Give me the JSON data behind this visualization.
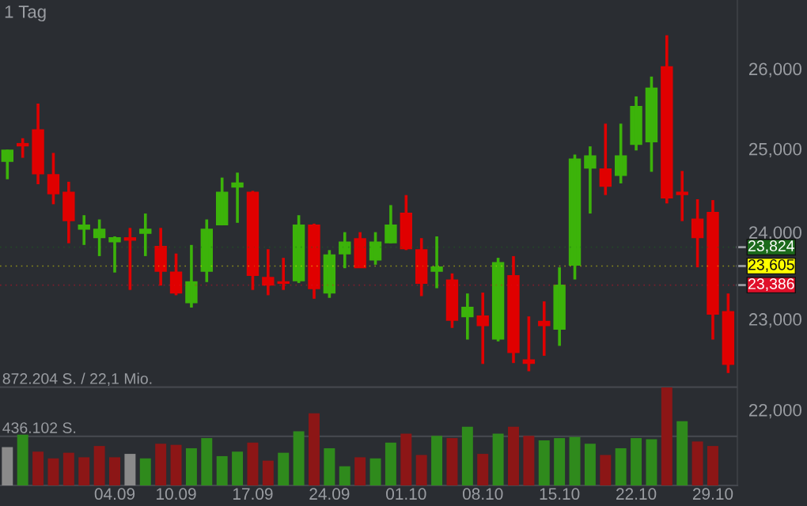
{
  "chart_data": [
    {
      "type": "candlestick",
      "subtitle": "1 Tag",
      "categories": [
        null,
        null,
        null,
        null,
        null,
        null,
        null,
        "04.09",
        null,
        null,
        null,
        "10.09",
        null,
        null,
        null,
        null,
        "17.09",
        null,
        null,
        null,
        null,
        "24.09",
        null,
        null,
        null,
        null,
        "01.10",
        null,
        null,
        null,
        null,
        "08.10",
        null,
        null,
        null,
        null,
        "15.10",
        null,
        null,
        null,
        null,
        "22.10",
        null,
        null,
        null,
        null,
        "29.10",
        null
      ],
      "ohlc": [
        [
          24850,
          24990,
          24630,
          24980
        ],
        [
          25060,
          25130,
          24890,
          25040
        ],
        [
          25230,
          25560,
          24570,
          24700
        ],
        [
          24680,
          24950,
          24330,
          24460
        ],
        [
          24470,
          24600,
          23870,
          24140
        ],
        [
          24040,
          24200,
          23850,
          24080
        ],
        [
          23940,
          24150,
          23720,
          24030
        ],
        [
          23890,
          23950,
          23530,
          23930
        ],
        [
          23930,
          24050,
          23330,
          23910
        ],
        [
          23990,
          24220,
          23720,
          24030
        ],
        [
          23830,
          24050,
          23380,
          23550
        ],
        [
          23530,
          23750,
          23270,
          23300
        ],
        [
          23190,
          23850,
          23130,
          23420
        ],
        [
          23550,
          24150,
          23420,
          24030
        ],
        [
          24090,
          24650,
          24080,
          24470
        ],
        [
          24540,
          24710,
          24110,
          24580
        ],
        [
          24470,
          24490,
          23330,
          23500
        ],
        [
          23470,
          23800,
          23270,
          23390
        ],
        [
          23420,
          23700,
          23330,
          23410
        ],
        [
          23440,
          24200,
          23410,
          24080
        ],
        [
          24080,
          24100,
          23230,
          23350
        ],
        [
          23300,
          23790,
          23240,
          23730
        ],
        [
          23750,
          24000,
          23580,
          23880
        ],
        [
          23920,
          24000,
          23590,
          23590
        ],
        [
          23680,
          24000,
          23620,
          23880
        ],
        [
          23880,
          24320,
          23870,
          24080
        ],
        [
          24220,
          24440,
          23790,
          23810
        ],
        [
          23790,
          23930,
          23260,
          23410
        ],
        [
          23550,
          23950,
          23350,
          23590
        ],
        [
          23440,
          23520,
          22900,
          22990
        ],
        [
          23030,
          23290,
          22770,
          23130
        ],
        [
          23030,
          23300,
          22500,
          22930
        ],
        [
          22780,
          23700,
          22750,
          23640
        ],
        [
          23490,
          23720,
          22510,
          22630
        ],
        [
          22540,
          23030,
          22420,
          22510
        ],
        [
          22970,
          23200,
          22590,
          22930
        ],
        [
          22890,
          23590,
          22700,
          23380
        ],
        [
          23620,
          24930,
          23450,
          24870
        ],
        [
          24770,
          25030,
          24220,
          24910
        ],
        [
          24750,
          25310,
          24440,
          24550
        ],
        [
          24680,
          25310,
          24580,
          24910
        ],
        [
          25060,
          25650,
          24980,
          25520
        ],
        [
          25090,
          25900,
          24720,
          25750
        ],
        [
          26020,
          26430,
          24340,
          24410
        ],
        [
          24470,
          24730,
          24130,
          24450
        ],
        [
          24150,
          24390,
          23590,
          23940
        ],
        [
          24230,
          24380,
          22770,
          23060
        ],
        [
          23080,
          23290,
          22400,
          22500
        ]
      ],
      "colors": [
        "#3cb30a",
        "#e00000",
        "#e00000",
        "#e00000",
        "#e00000",
        "#3cb30a",
        "#3cb30a",
        "#3cb30a",
        "#e00000",
        "#3cb30a",
        "#e00000",
        "#e00000",
        "#3cb30a",
        "#3cb30a",
        "#3cb30a",
        "#3cb30a",
        "#e00000",
        "#e00000",
        "#e00000",
        "#3cb30a",
        "#e00000",
        "#3cb30a",
        "#3cb30a",
        "#e00000",
        "#3cb30a",
        "#3cb30a",
        "#e00000",
        "#e00000",
        "#3cb30a",
        "#e00000",
        "#3cb30a",
        "#e00000",
        "#3cb30a",
        "#e00000",
        "#e00000",
        "#e00000",
        "#3cb30a",
        "#3cb30a",
        "#3cb30a",
        "#e00000",
        "#3cb30a",
        "#3cb30a",
        "#3cb30a",
        "#e00000",
        "#e00000",
        "#e00000",
        "#e00000",
        "#e00000"
      ],
      "log": "y",
      "ylim": [
        21200,
        26890
      ],
      "yticks": [
        {
          "value": 22000,
          "label": "22,000"
        },
        {
          "value": 23000,
          "label": "23,000"
        },
        {
          "value": 24000,
          "label": "24,000"
        },
        {
          "value": 25000,
          "label": "25,000"
        },
        {
          "value": 26000,
          "label": "26,000"
        }
      ],
      "ref_lines": [
        {
          "axis": "y",
          "value": 23824,
          "label": "23,824",
          "color": "#1c6b1c"
        },
        {
          "axis": "y",
          "value": 23605,
          "label": "23,605",
          "color": "#ffff00"
        },
        {
          "axis": "y",
          "value": 23386,
          "label": "23,386",
          "color": "#e0102a"
        }
      ],
      "grid": false,
      "tick_labels": "y"
    },
    {
      "type": "bar",
      "categories": [
        null,
        null,
        null,
        null,
        null,
        null,
        null,
        "04.09",
        null,
        null,
        null,
        "10.09",
        null,
        null,
        null,
        null,
        "17.09",
        null,
        null,
        null,
        null,
        "24.09",
        null,
        null,
        null,
        null,
        "01.10",
        null,
        null,
        null,
        null,
        "08.10",
        null,
        null,
        null,
        null,
        "15.10",
        null,
        null,
        null,
        null,
        "22.10",
        null,
        null,
        null,
        null,
        "29.10",
        null
      ],
      "values": [
        340,
        450,
        300,
        240,
        290,
        250,
        350,
        250,
        280,
        240,
        370,
        360,
        330,
        420,
        260,
        300,
        380,
        220,
        290,
        480,
        640,
        330,
        170,
        250,
        240,
        380,
        460,
        270,
        440,
        420,
        520,
        280,
        460,
        520,
        440,
        400,
        420,
        430,
        370,
        270,
        330,
        420,
        410,
        870,
        570,
        390,
        350,
        null
      ],
      "colors": [
        "#8a8a8a",
        "#2f8a1c",
        "#8c1616",
        "#8c1616",
        "#8c1616",
        "#8c1616",
        "#8c1616",
        "#8c1616",
        "#8a8a8a",
        "#2f8a1c",
        "#8c1616",
        "#8c1616",
        "#2f8a1c",
        "#2f8a1c",
        "#2f8a1c",
        "#2f8a1c",
        "#8c1616",
        "#8c1616",
        "#2f8a1c",
        "#2f8a1c",
        "#8c1616",
        "#2f8a1c",
        "#2f8a1c",
        "#8c1616",
        "#2f8a1c",
        "#2f8a1c",
        "#8c1616",
        "#8c1616",
        "#2f8a1c",
        "#8c1616",
        "#2f8a1c",
        "#8c1616",
        "#2f8a1c",
        "#8c1616",
        "#8c1616",
        "#2f8a1c",
        "#2f8a1c",
        "#2f8a1c",
        "#2f8a1c",
        "#8c1616",
        "#2f8a1c",
        "#2f8a1c",
        "#2f8a1c",
        "#8c1616",
        "#2f8a1c",
        "#8c1616",
        "#8c1616",
        "#8a8a8a"
      ],
      "ylim": [
        0,
        1080
      ],
      "yticks": [
        {
          "value": 436.102,
          "label": "436.102 S."
        },
        {
          "value": 872.204,
          "label": "872.204 S."
        }
      ],
      "annotations": [
        "/ 22,1 Mio."
      ],
      "grid": "y"
    }
  ]
}
